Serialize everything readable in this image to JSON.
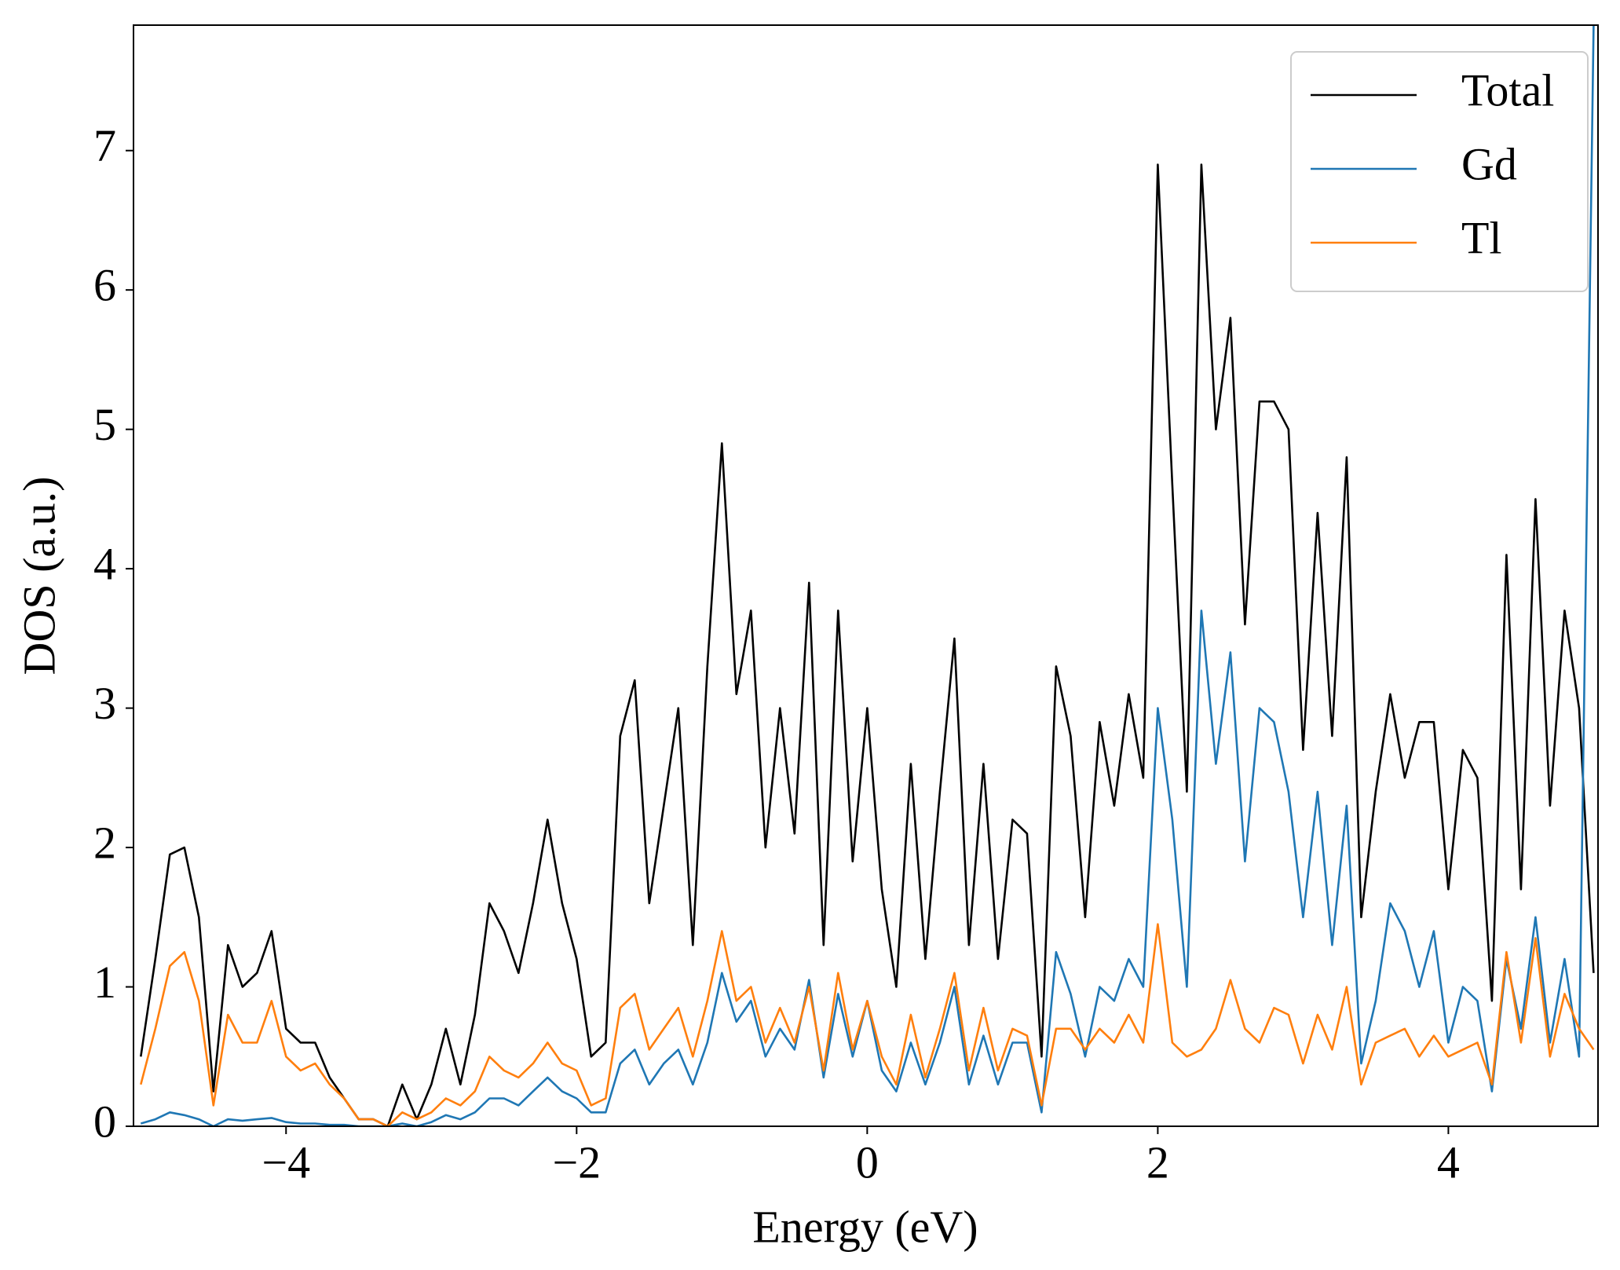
{
  "chart_data": {
    "type": "line",
    "xlabel": "Energy (eV)",
    "ylabel": "DOS (a.u.)",
    "x": [
      -5.0,
      -4.9,
      -4.8,
      -4.7,
      -4.6,
      -4.5,
      -4.4,
      -4.3,
      -4.2,
      -4.1,
      -4.0,
      -3.9,
      -3.8,
      -3.7,
      -3.6,
      -3.5,
      -3.4,
      -3.3,
      -3.2,
      -3.1,
      -3.0,
      -2.9,
      -2.8,
      -2.7,
      -2.6,
      -2.5,
      -2.4,
      -2.3,
      -2.2,
      -2.1,
      -2.0,
      -1.9,
      -1.8,
      -1.7,
      -1.6,
      -1.5,
      -1.4,
      -1.3,
      -1.2,
      -1.1,
      -1.0,
      -0.9,
      -0.8,
      -0.7,
      -0.6,
      -0.5,
      -0.4,
      -0.3,
      -0.2,
      -0.1,
      0.0,
      0.1,
      0.2,
      0.3,
      0.4,
      0.5,
      0.6,
      0.7,
      0.8,
      0.9,
      1.0,
      1.1,
      1.2,
      1.3,
      1.4,
      1.5,
      1.6,
      1.7,
      1.8,
      1.9,
      2.0,
      2.1,
      2.2,
      2.3,
      2.4,
      2.5,
      2.6,
      2.7,
      2.8,
      2.9,
      3.0,
      3.1,
      3.2,
      3.3,
      3.4,
      3.5,
      3.6,
      3.7,
      3.8,
      3.9,
      4.0,
      4.1,
      4.2,
      4.3,
      4.4,
      4.5,
      4.6,
      4.7,
      4.8,
      4.9,
      5.0
    ],
    "series": [
      {
        "name": "Total",
        "color": "#000000",
        "values": [
          0.5,
          1.2,
          1.95,
          2.0,
          1.5,
          0.25,
          1.3,
          1.0,
          1.1,
          1.4,
          0.7,
          0.6,
          0.6,
          0.35,
          0.2,
          0.05,
          0.05,
          0.0,
          0.3,
          0.05,
          0.3,
          0.7,
          0.3,
          0.8,
          1.6,
          1.4,
          1.1,
          1.6,
          2.2,
          1.6,
          1.2,
          0.5,
          0.6,
          2.8,
          3.2,
          1.6,
          2.3,
          3.0,
          1.3,
          3.3,
          4.9,
          3.1,
          3.7,
          2.0,
          3.0,
          2.1,
          3.9,
          1.3,
          3.7,
          1.9,
          3.0,
          1.7,
          1.0,
          2.6,
          1.2,
          2.4,
          3.5,
          1.3,
          2.6,
          1.2,
          2.2,
          2.1,
          0.5,
          3.3,
          2.8,
          1.5,
          2.9,
          2.3,
          3.1,
          2.5,
          6.9,
          4.6,
          2.4,
          6.9,
          5.0,
          5.8,
          3.6,
          5.2,
          5.2,
          5.0,
          2.7,
          4.4,
          2.8,
          4.8,
          1.5,
          2.4,
          3.1,
          2.5,
          2.9,
          2.9,
          1.7,
          2.7,
          2.5,
          0.9,
          4.1,
          1.7,
          4.5,
          2.3,
          3.7,
          3.0,
          1.1
        ]
      },
      {
        "name": "Gd",
        "color": "#1f77b4",
        "values": [
          0.02,
          0.05,
          0.1,
          0.08,
          0.05,
          0.0,
          0.05,
          0.04,
          0.05,
          0.06,
          0.03,
          0.02,
          0.02,
          0.01,
          0.01,
          0.0,
          0.0,
          0.0,
          0.02,
          0.0,
          0.03,
          0.08,
          0.05,
          0.1,
          0.2,
          0.2,
          0.15,
          0.25,
          0.35,
          0.25,
          0.2,
          0.1,
          0.1,
          0.45,
          0.55,
          0.3,
          0.45,
          0.55,
          0.3,
          0.6,
          1.1,
          0.75,
          0.9,
          0.5,
          0.7,
          0.55,
          1.05,
          0.35,
          0.95,
          0.5,
          0.9,
          0.4,
          0.25,
          0.6,
          0.3,
          0.6,
          1.0,
          0.3,
          0.65,
          0.3,
          0.6,
          0.6,
          0.1,
          1.25,
          0.95,
          0.5,
          1.0,
          0.9,
          1.2,
          1.0,
          3.0,
          2.2,
          1.0,
          3.7,
          2.6,
          3.4,
          1.9,
          3.0,
          2.9,
          2.4,
          1.5,
          2.4,
          1.3,
          2.3,
          0.45,
          0.9,
          1.6,
          1.4,
          1.0,
          1.4,
          0.6,
          1.0,
          0.9,
          0.25,
          1.2,
          0.7,
          1.5,
          0.6,
          1.2,
          0.5,
          7.9
        ]
      },
      {
        "name": "Tl",
        "color": "#ff7f0e",
        "values": [
          0.3,
          0.7,
          1.15,
          1.25,
          0.9,
          0.15,
          0.8,
          0.6,
          0.6,
          0.9,
          0.5,
          0.4,
          0.45,
          0.3,
          0.2,
          0.05,
          0.05,
          0.0,
          0.1,
          0.05,
          0.1,
          0.2,
          0.15,
          0.25,
          0.5,
          0.4,
          0.35,
          0.45,
          0.6,
          0.45,
          0.4,
          0.15,
          0.2,
          0.85,
          0.95,
          0.55,
          0.7,
          0.85,
          0.5,
          0.9,
          1.4,
          0.9,
          1.0,
          0.6,
          0.85,
          0.6,
          1.0,
          0.4,
          1.1,
          0.55,
          0.9,
          0.5,
          0.3,
          0.8,
          0.35,
          0.7,
          1.1,
          0.4,
          0.85,
          0.4,
          0.7,
          0.65,
          0.15,
          0.7,
          0.7,
          0.55,
          0.7,
          0.6,
          0.8,
          0.6,
          1.45,
          0.6,
          0.5,
          0.55,
          0.7,
          1.05,
          0.7,
          0.6,
          0.85,
          0.8,
          0.45,
          0.8,
          0.55,
          1.0,
          0.3,
          0.6,
          0.65,
          0.7,
          0.5,
          0.65,
          0.5,
          0.55,
          0.6,
          0.3,
          1.25,
          0.6,
          1.35,
          0.5,
          0.95,
          0.7,
          0.55
        ]
      }
    ],
    "xlim": [
      -5.05,
      5.03
    ],
    "ylim": [
      0,
      7.9
    ],
    "xticks": [
      {
        "value": -4,
        "label": "−4"
      },
      {
        "value": -2,
        "label": "−2"
      },
      0,
      2,
      4
    ],
    "yticks": [
      0,
      1,
      2,
      3,
      4,
      5,
      6,
      7
    ],
    "legend": "upper right",
    "grid": false
  }
}
